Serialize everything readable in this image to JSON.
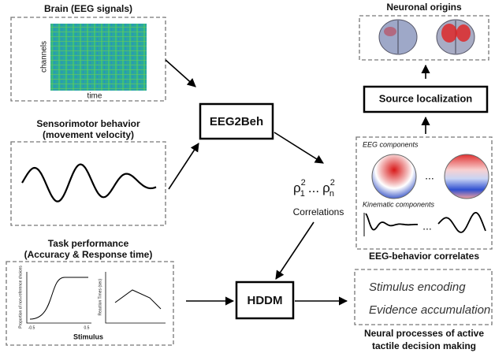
{
  "eeg_panel": {
    "title": "Brain (EEG signals)",
    "y_label": "channels",
    "x_label": "time"
  },
  "behavior_panel": {
    "title_lines": [
      "Sensorimotor behavior",
      "(movement velocity)"
    ]
  },
  "task_panel": {
    "title_lines": [
      "Task performance",
      "(Accuracy & Response time)"
    ],
    "left_plot_y_label": "Proportion of non-reference choices",
    "right_plot_y_label": "Reaction Times (sec)",
    "x_label": "Stimulus",
    "x_tick_left": "-0.5",
    "x_tick_right": "0.5"
  },
  "eeg2beh": {
    "label": "EEG2Beh"
  },
  "hddm": {
    "label": "HDDM"
  },
  "correlations": {
    "rho": "ρ",
    "first_index": "1",
    "power": "2",
    "dots": "...",
    "last_index": "n",
    "label": "Correlations"
  },
  "neuronal_origins": {
    "title": "Neuronal origins"
  },
  "source_localization": {
    "label": "Source localization"
  },
  "correlates_panel": {
    "eeg_components": "EEG components",
    "eeg_dots": "...",
    "kinematic_components": "Kinematic components",
    "kinematic_dots": "...",
    "caption": "EEG-behavior correlates"
  },
  "neural_processes": {
    "items": [
      "Stimulus encoding",
      "Evidence accumulation"
    ],
    "caption_lines": [
      "Neural processes of active",
      "tactile decision making"
    ]
  }
}
